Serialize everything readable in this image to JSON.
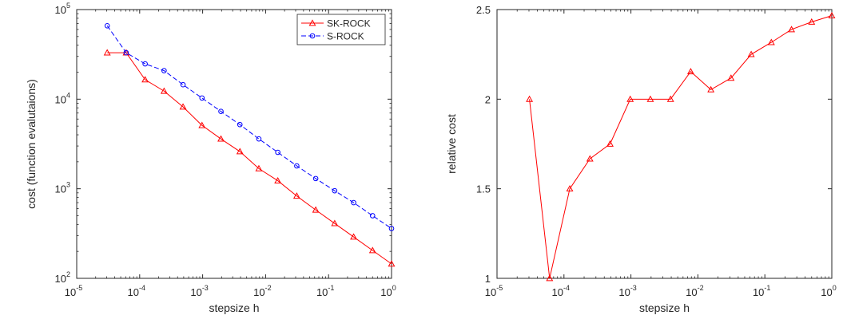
{
  "chart_data": [
    {
      "type": "line",
      "xscale": "log",
      "yscale": "log",
      "xlabel": "stepsize h",
      "ylabel": "cost (function evalutaions)",
      "xlim": [
        1e-05,
        1
      ],
      "ylim": [
        100,
        100000
      ],
      "grid": false,
      "legend_position": "top-right",
      "x": [
        3.052e-05,
        6.104e-05,
        0.00012207,
        0.00024414,
        0.00048828,
        0.00097656,
        0.00195313,
        0.00390625,
        0.0078125,
        0.015625,
        0.03125,
        0.0625,
        0.125,
        0.25,
        0.5,
        1
      ],
      "xticks": [
        {
          "base": "10",
          "exp": "-5",
          "value": 1e-05
        },
        {
          "base": "10",
          "exp": "-4",
          "value": 0.0001
        },
        {
          "base": "10",
          "exp": "-3",
          "value": 0.001
        },
        {
          "base": "10",
          "exp": "-2",
          "value": 0.01
        },
        {
          "base": "10",
          "exp": "-1",
          "value": 0.1
        },
        {
          "base": "10",
          "exp": "0",
          "value": 1
        }
      ],
      "yticks": [
        {
          "base": "10",
          "exp": "2",
          "value": 100
        },
        {
          "base": "10",
          "exp": "3",
          "value": 1000
        },
        {
          "base": "10",
          "exp": "4",
          "value": 10000
        },
        {
          "base": "10",
          "exp": "5",
          "value": 100000
        }
      ],
      "series": [
        {
          "name": "SK-ROCK",
          "color": "#ff0000",
          "line_style": "solid",
          "marker": "triangle",
          "values": [
            33000,
            33000,
            16500,
            12300,
            8200,
            5100,
            3600,
            2600,
            1680,
            1230,
            830,
            580,
            410,
            290,
            205,
            145
          ]
        },
        {
          "name": "S-ROCK",
          "color": "#0000ff",
          "line_style": "dashed",
          "marker": "circle",
          "values": [
            66000,
            33000,
            24800,
            20800,
            14500,
            10300,
            7300,
            5200,
            3600,
            2550,
            1800,
            1300,
            950,
            700,
            500,
            360
          ]
        }
      ]
    },
    {
      "type": "line",
      "xscale": "log",
      "yscale": "linear",
      "xlabel": "stepsize h",
      "ylabel": "relative cost",
      "xlim": [
        1e-05,
        1
      ],
      "ylim": [
        1,
        2.5
      ],
      "grid": false,
      "x": [
        3.052e-05,
        6.104e-05,
        0.00012207,
        0.00024414,
        0.00048828,
        0.00097656,
        0.00195313,
        0.00390625,
        0.0078125,
        0.015625,
        0.03125,
        0.0625,
        0.125,
        0.25,
        0.5,
        1
      ],
      "xticks": [
        {
          "base": "10",
          "exp": "-5",
          "value": 1e-05
        },
        {
          "base": "10",
          "exp": "-4",
          "value": 0.0001
        },
        {
          "base": "10",
          "exp": "-3",
          "value": 0.001
        },
        {
          "base": "10",
          "exp": "-2",
          "value": 0.01
        },
        {
          "base": "10",
          "exp": "-1",
          "value": 0.1
        },
        {
          "base": "10",
          "exp": "0",
          "value": 1
        }
      ],
      "yticks": [
        {
          "label": "1",
          "value": 1
        },
        {
          "label": "1.5",
          "value": 1.5
        },
        {
          "label": "2",
          "value": 2
        },
        {
          "label": "2.5",
          "value": 2.5
        }
      ],
      "series": [
        {
          "color": "#ff0000",
          "line_style": "solid",
          "marker": "triangle",
          "values": [
            2.0,
            1.0,
            1.5,
            1.667,
            1.75,
            2.0,
            2.0,
            2.0,
            2.154,
            2.053,
            2.118,
            2.25,
            2.317,
            2.389,
            2.431,
            2.466
          ]
        }
      ]
    }
  ]
}
